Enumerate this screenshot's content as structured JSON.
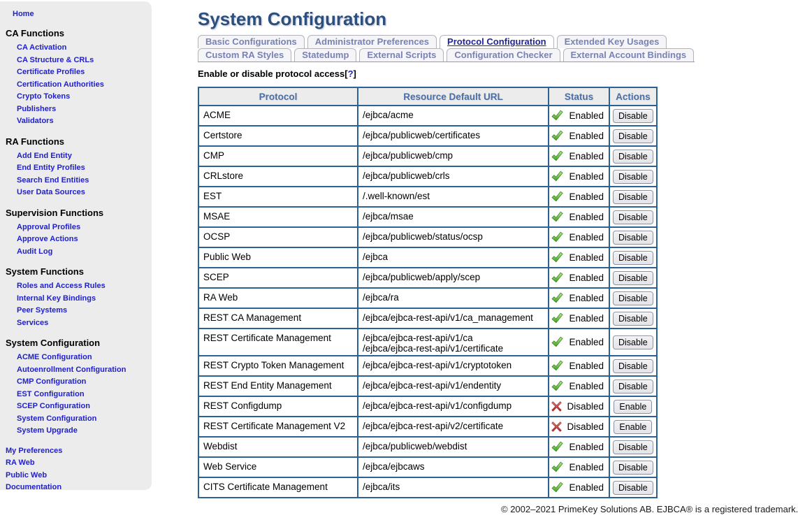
{
  "colors": {
    "link_blue": "#2020cc",
    "title_blue": "#2b4f7e",
    "tab_active": "#20259c",
    "tab_inactive": "#7882b4",
    "table_border": "#2d6192",
    "table_header_text": "#4a6fa5",
    "status_enabled_green": "#3f9e22",
    "status_disabled_red": "#c03a3a"
  },
  "sidebar": {
    "home": "Home",
    "sections": [
      {
        "title": "CA Functions",
        "items": [
          "CA Activation",
          "CA Structure & CRLs",
          "Certificate Profiles",
          "Certification Authorities",
          "Crypto Tokens",
          "Publishers",
          "Validators"
        ]
      },
      {
        "title": "RA Functions",
        "items": [
          "Add End Entity",
          "End Entity Profiles",
          "Search End Entities",
          "User Data Sources"
        ]
      },
      {
        "title": "Supervision Functions",
        "items": [
          "Approval Profiles",
          "Approve Actions",
          "Audit Log"
        ]
      },
      {
        "title": "System Functions",
        "items": [
          "Roles and Access Rules",
          "Internal Key Bindings",
          "Peer Systems",
          "Services"
        ]
      },
      {
        "title": "System Configuration",
        "items": [
          "ACME Configuration",
          "Autoenrollment Configuration",
          "CMP Configuration",
          "EST Configuration",
          "SCEP Configuration",
          "System Configuration",
          "System Upgrade"
        ]
      }
    ],
    "bottom_links": [
      "My Preferences",
      "RA Web",
      "Public Web",
      "Documentation"
    ]
  },
  "header": {
    "title": "System Configuration"
  },
  "tabs": {
    "rows": [
      [
        {
          "label": "Basic Configurations",
          "active": false
        },
        {
          "label": "Administrator Preferences",
          "active": false
        },
        {
          "label": "Protocol Configuration",
          "active": true
        },
        {
          "label": "Extended Key Usages",
          "active": false
        }
      ],
      [
        {
          "label": "Custom RA Styles",
          "active": false
        },
        {
          "label": "Statedump",
          "active": false
        },
        {
          "label": "External Scripts",
          "active": false
        },
        {
          "label": "Configuration Checker",
          "active": false
        },
        {
          "label": "External Account Bindings",
          "active": false
        }
      ]
    ]
  },
  "content": {
    "help_label": "Enable or disable protocol access[",
    "help_link": "?",
    "help_close": "]",
    "table": {
      "headers": [
        "Protocol",
        "Resource Default URL",
        "Status",
        "Actions"
      ],
      "rows": [
        {
          "protocol": "ACME",
          "url": "/ejbca/acme",
          "status": "Enabled",
          "icon": "check-icon",
          "action": "Disable"
        },
        {
          "protocol": "Certstore",
          "url": "/ejbca/publicweb/certificates",
          "status": "Enabled",
          "icon": "check-icon",
          "action": "Disable"
        },
        {
          "protocol": "CMP",
          "url": "/ejbca/publicweb/cmp",
          "status": "Enabled",
          "icon": "check-icon",
          "action": "Disable"
        },
        {
          "protocol": "CRLstore",
          "url": "/ejbca/publicweb/crls",
          "status": "Enabled",
          "icon": "check-icon",
          "action": "Disable"
        },
        {
          "protocol": "EST",
          "url": "/.well-known/est",
          "status": "Enabled",
          "icon": "check-icon",
          "action": "Disable"
        },
        {
          "protocol": "MSAE",
          "url": "/ejbca/msae",
          "status": "Enabled",
          "icon": "check-icon",
          "action": "Disable"
        },
        {
          "protocol": "OCSP",
          "url": "/ejbca/publicweb/status/ocsp",
          "status": "Enabled",
          "icon": "check-icon",
          "action": "Disable"
        },
        {
          "protocol": "Public Web",
          "url": "/ejbca",
          "status": "Enabled",
          "icon": "check-icon",
          "action": "Disable"
        },
        {
          "protocol": "SCEP",
          "url": "/ejbca/publicweb/apply/scep",
          "status": "Enabled",
          "icon": "check-icon",
          "action": "Disable"
        },
        {
          "protocol": "RA Web",
          "url": "/ejbca/ra",
          "status": "Enabled",
          "icon": "check-icon",
          "action": "Disable"
        },
        {
          "protocol": "REST CA Management",
          "url": "/ejbca/ejbca-rest-api/v1/ca_management",
          "status": "Enabled",
          "icon": "check-icon",
          "action": "Disable"
        },
        {
          "protocol": "REST Certificate Management",
          "url": "/ejbca/ejbca-rest-api/v1/ca\n/ejbca/ejbca-rest-api/v1/certificate",
          "status": "Enabled",
          "icon": "check-icon",
          "action": "Disable"
        },
        {
          "protocol": "REST Crypto Token Management",
          "url": "/ejbca/ejbca-rest-api/v1/cryptotoken",
          "status": "Enabled",
          "icon": "check-icon",
          "action": "Disable"
        },
        {
          "protocol": "REST End Entity Management",
          "url": "/ejbca/ejbca-rest-api/v1/endentity",
          "status": "Enabled",
          "icon": "check-icon",
          "action": "Disable"
        },
        {
          "protocol": "REST Configdump",
          "url": "/ejbca/ejbca-rest-api/v1/configdump",
          "status": "Disabled",
          "icon": "cross-icon",
          "action": "Enable"
        },
        {
          "protocol": "REST Certificate Management V2",
          "url": "/ejbca/ejbca-rest-api/v2/certificate",
          "status": "Disabled",
          "icon": "cross-icon",
          "action": "Enable"
        },
        {
          "protocol": "Webdist",
          "url": "/ejbca/publicweb/webdist",
          "status": "Enabled",
          "icon": "check-icon",
          "action": "Disable"
        },
        {
          "protocol": "Web Service",
          "url": "/ejbca/ejbcaws",
          "status": "Enabled",
          "icon": "check-icon",
          "action": "Disable"
        },
        {
          "protocol": "CITS Certificate Management",
          "url": "/ejbca/its",
          "status": "Enabled",
          "icon": "check-icon",
          "action": "Disable"
        }
      ]
    }
  },
  "footer": {
    "copyright": "© 2002–2021 PrimeKey Solutions AB. EJBCA® is a registered trademark."
  }
}
